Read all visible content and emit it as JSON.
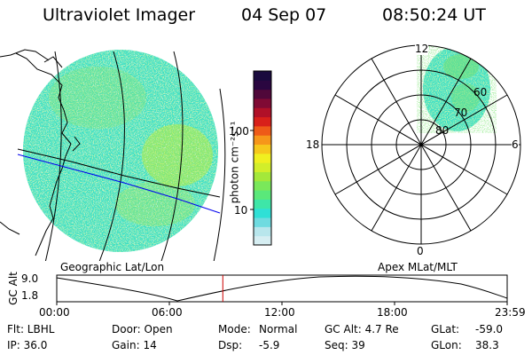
{
  "header": {
    "title": "Ultraviolet Imager",
    "date": "04 Sep 07",
    "time": "08:50:24 UT"
  },
  "colorbar": {
    "unit_label": "photon cm⁻²s⁻¹",
    "tick_100": "100",
    "tick_10": "10",
    "colors": [
      "#d6eef2",
      "#b8e6ec",
      "#6fdbe0",
      "#2fe0d6",
      "#3ee6a8",
      "#5ae87a",
      "#7ae85a",
      "#a4e83a",
      "#d2ee2a",
      "#f0f020",
      "#f6c81c",
      "#f6961a",
      "#ee5a18",
      "#d8201a",
      "#b01028",
      "#800a34",
      "#50083a",
      "#2a0640",
      "#1a0a3e"
    ]
  },
  "left_panel": {
    "caption": "Geographic Lat/Lon",
    "colors": {
      "background": "#3ee0c6",
      "speckle": "#78e070",
      "accent_a": "#b8ec3c",
      "accent_b": "#d2ee30",
      "edge": "#bcebf0",
      "coastline": "#000000",
      "terminator": "#0000ee"
    }
  },
  "polar_plot": {
    "caption": "Apex MLat/MLT",
    "mlt_top": "12",
    "mlt_left": "18",
    "mlt_right": "6",
    "mlt_bottom": "0",
    "lat_60": "60",
    "lat_70": "70",
    "lat_80": "80"
  },
  "altitude_strip": {
    "ylabel": "GC Alt",
    "ymax_label": "9.0",
    "ymin_label": "1.8",
    "current_time_fraction": 0.3687,
    "time_ticks": [
      "00:00",
      "06:00",
      "12:00",
      "18:00",
      "23:59"
    ],
    "marker_color": "#cc0000"
  },
  "info": {
    "flt": "Flt: LBHL",
    "ip": "IP: 36.0",
    "door": "Door: Open",
    "gain": "Gain: 14",
    "mode_label": "Mode:",
    "mode_value": "Normal",
    "dsp_label": "Dsp:",
    "dsp_value": "-5.9",
    "gc_alt": "GC Alt: 4.7 Re",
    "seq": "Seq: 39",
    "glat_label": "GLat:",
    "glat_value": "-59.0",
    "glon_label": "GLon:",
    "glon_value": "38.3"
  }
}
